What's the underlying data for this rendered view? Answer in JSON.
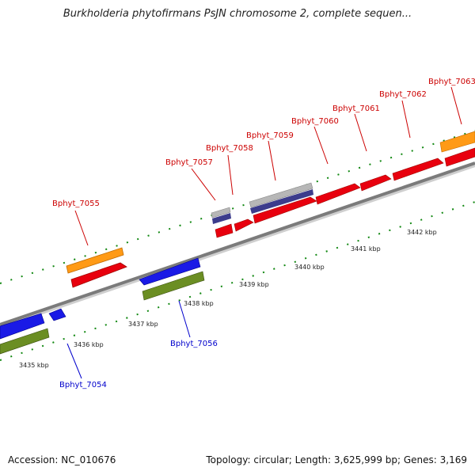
{
  "title": "Burkholderia phytofirmans PsJN chromosome 2, complete sequen...",
  "footer": {
    "accession": "Accession: NC_010676",
    "summary": "Topology: circular; Length: 3,625,999 bp; Genes: 3,169"
  },
  "colors": {
    "backbone": "#7b7b7b",
    "forward": "#e8000e",
    "reverse": "#1a1ae6",
    "orange": "#ff9a16",
    "green": "#6b8e23",
    "gray": "#b7b7b7",
    "navy": "#3c3c8c",
    "tick": "#118811",
    "label_forward": "#cc0000",
    "label_reverse": "#0000cc"
  },
  "scale_labels": [
    {
      "text": "3435 kbp"
    },
    {
      "text": "3436 kbp"
    },
    {
      "text": "3437 kbp"
    },
    {
      "text": "3438 kbp"
    },
    {
      "text": "3439 kbp"
    },
    {
      "text": "3440 kbp"
    },
    {
      "text": "3441 kbp"
    },
    {
      "text": "3442 kbp"
    }
  ],
  "gene_labels_forward": [
    {
      "name": "Bphyt_7055"
    },
    {
      "name": "Bphyt_7057"
    },
    {
      "name": "Bphyt_7058"
    },
    {
      "name": "Bphyt_7059"
    },
    {
      "name": "Bphyt_7060"
    },
    {
      "name": "Bphyt_7061"
    },
    {
      "name": "Bphyt_7062"
    },
    {
      "name": "Bphyt_7063"
    }
  ],
  "gene_labels_reverse": [
    {
      "name": "Bphyt_7054"
    },
    {
      "name": "Bphyt_7056"
    }
  ]
}
